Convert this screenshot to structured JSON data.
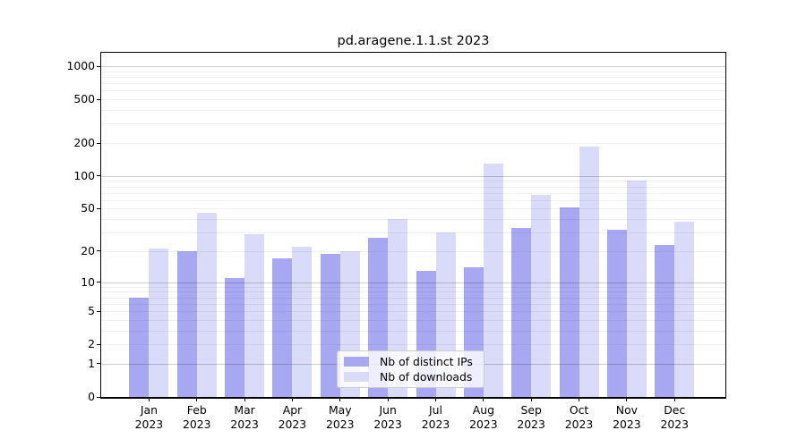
{
  "chart_data": {
    "type": "bar",
    "title": "pd.aragene.1.1.st 2023",
    "categories": [
      "Jan",
      "Feb",
      "Mar",
      "Apr",
      "May",
      "Jun",
      "Jul",
      "Aug",
      "Sep",
      "Oct",
      "Nov",
      "Dec"
    ],
    "category_year": "2023",
    "series": [
      {
        "key": "distinct-ips",
        "name": "Nb of distinct IPs",
        "color": "#a8a8f2",
        "values": [
          7,
          20,
          11,
          17,
          19,
          27,
          13,
          14,
          33,
          51,
          32,
          23
        ]
      },
      {
        "key": "downloads",
        "name": "Nb of downloads",
        "color": "#dadaf9",
        "values": [
          21,
          46,
          29,
          22,
          20,
          40,
          30,
          130,
          67,
          184,
          90,
          38
        ]
      }
    ],
    "yscale": "log1p",
    "ylim": [
      0,
      1325
    ],
    "y_ticks": [
      0,
      1,
      2,
      5,
      10,
      20,
      50,
      100,
      200,
      500,
      1000
    ],
    "grid": true,
    "legend_position": "lower center"
  },
  "colors": {
    "background": "#ffffff",
    "axis": "#000000",
    "grid_major": "rgba(0,0,0,0.20)",
    "grid_minor": "rgba(0,0,0,0.06)",
    "legend_border": "#cccccc",
    "text": "#000000"
  }
}
